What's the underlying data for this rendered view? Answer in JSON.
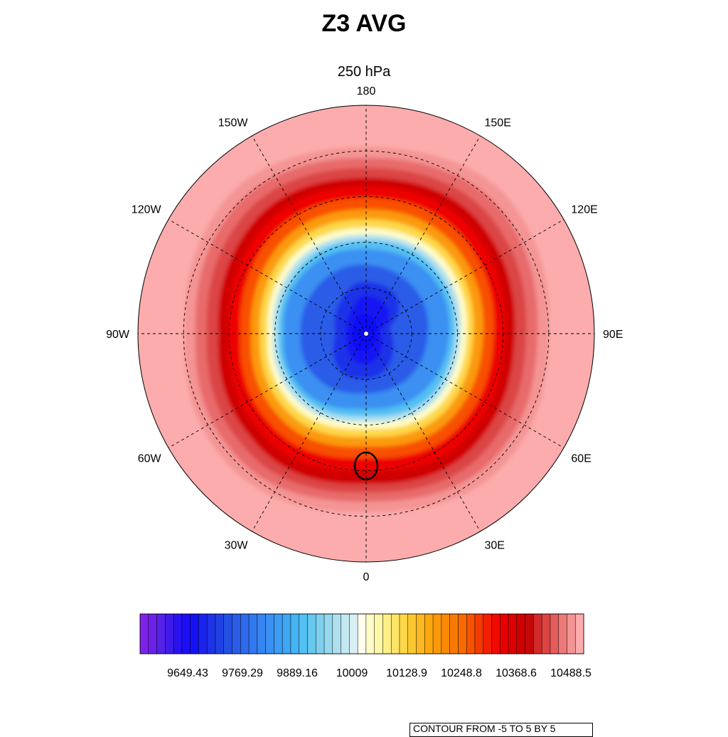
{
  "title": "Z3 AVG",
  "subtitle": "250 hPa",
  "map": {
    "projection": "polar stereographic (north polar view, 0° at bottom)",
    "longitude_labels": [
      {
        "id": "180",
        "text": "180",
        "lon": 180
      },
      {
        "id": "150e",
        "text": "150E",
        "lon": 150
      },
      {
        "id": "120e",
        "text": "120E",
        "lon": 120
      },
      {
        "id": "90e",
        "text": "90E",
        "lon": 90
      },
      {
        "id": "60e",
        "text": "60E",
        "lon": 60
      },
      {
        "id": "30e",
        "text": "30E",
        "lon": 30
      },
      {
        "id": "0",
        "text": "0",
        "lon": 0
      },
      {
        "id": "30w",
        "text": "30W",
        "lon": -30
      },
      {
        "id": "60w",
        "text": "60W",
        "lon": -60
      },
      {
        "id": "90w",
        "text": "90W",
        "lon": -90
      },
      {
        "id": "120w",
        "text": "120W",
        "lon": -120
      },
      {
        "id": "150w",
        "text": "150W",
        "lon": -150
      }
    ],
    "meridian_spacing_deg": 30,
    "latitude_circles": 4
  },
  "colorbar": {
    "box_colors": [
      "#7f22e8",
      "#6a22e8",
      "#5520e8",
      "#3f1ceb",
      "#2a12ef",
      "#1c0ef4",
      "#1412f4",
      "#1a24ee",
      "#1e32e8",
      "#2040e4",
      "#2250e4",
      "#2a5ce8",
      "#2e6aec",
      "#3278ee",
      "#3684f0",
      "#3a90f2",
      "#3c9cf4",
      "#3ea8f4",
      "#44b4f4",
      "#52c0f2",
      "#66c8ee",
      "#7ed0ee",
      "#96d8ee",
      "#aee0f0",
      "#c4e8f2",
      "#d8f0f4",
      "#fffff0",
      "#fffcc8",
      "#fff8a8",
      "#fff088",
      "#fee466",
      "#fed848",
      "#fcc830",
      "#fbb820",
      "#fba810",
      "#fb9a08",
      "#fa8a04",
      "#f97a02",
      "#f86a00",
      "#f75200",
      "#f43a00",
      "#f22000",
      "#f00a00",
      "#e80000",
      "#dc0000",
      "#d00000",
      "#c40808",
      "#d22a2a",
      "#dc4444",
      "#e45c5c",
      "#ec7878",
      "#f49494",
      "#fcacac"
    ],
    "tick_labels": [
      "9649.43",
      "9769.29",
      "9889.16",
      "10009",
      "10128.9",
      "10248.8",
      "10368.6",
      "10488.5"
    ]
  },
  "contour_info": "CONTOUR FROM -5 TO 5 BY 5"
}
